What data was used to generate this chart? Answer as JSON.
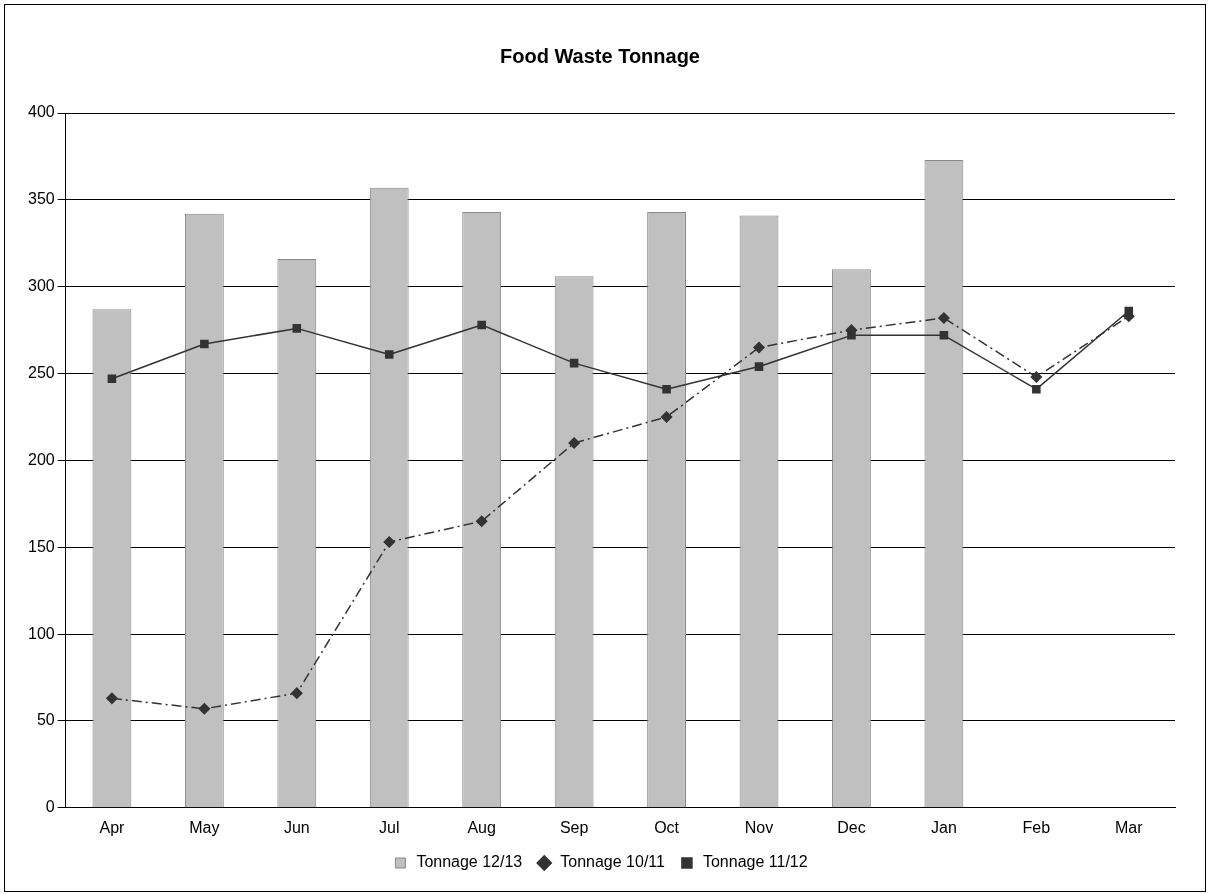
{
  "chart_data": {
    "type": "bar",
    "title": "Food Waste Tonnage",
    "categories": [
      "Apr",
      "May",
      "Jun",
      "Jul",
      "Aug",
      "Sep",
      "Oct",
      "Nov",
      "Dec",
      "Jan",
      "Feb",
      "Mar"
    ],
    "series": [
      {
        "name": "Tonnage 12/13",
        "color": "#c0c0c0",
        "values": [
          287,
          342,
          316,
          357,
          343,
          306,
          343,
          341,
          310,
          373,
          null,
          null
        ]
      },
      {
        "name": "Tonnage 10/11",
        "type": "line",
        "color": "#333333",
        "marker": "diamond",
        "line_style": "dashed",
        "values": [
          63,
          57,
          66,
          153,
          165,
          210,
          225,
          265,
          275,
          282,
          248,
          283
        ]
      },
      {
        "name": "Tonnage 11/12",
        "type": "line",
        "color": "#333333",
        "marker": "square",
        "line_style": "solid",
        "values": [
          247,
          267,
          276,
          261,
          278,
          256,
          241,
          254,
          272,
          272,
          241,
          286
        ]
      }
    ],
    "ylim": [
      0,
      400
    ],
    "yticks": [
      0,
      50,
      100,
      150,
      200,
      250,
      300,
      350,
      400
    ],
    "grid": "y",
    "legend": "bottom"
  }
}
